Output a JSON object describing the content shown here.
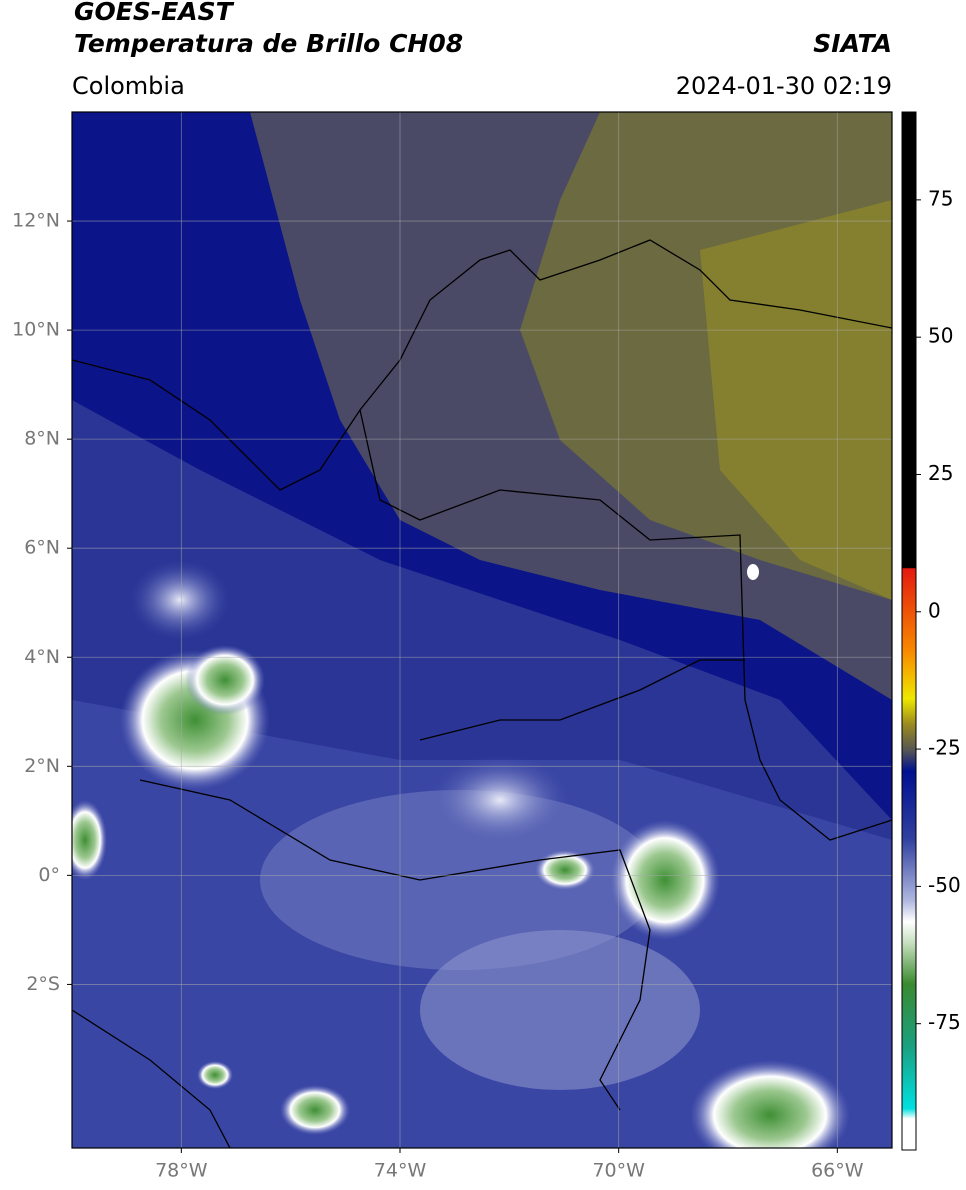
{
  "header": {
    "title": "GOES-EAST",
    "subtitle": "Temperatura de Brillo CH08",
    "source": "SIATA",
    "region": "Colombia",
    "timestamp": "2024-01-30 02:19"
  },
  "map": {
    "xlim": [
      -80,
      -65
    ],
    "ylim": [
      -5,
      14
    ],
    "xticks": [
      {
        "value": -78,
        "label": "78°W"
      },
      {
        "value": -74,
        "label": "74°W"
      },
      {
        "value": -70,
        "label": "70°W"
      },
      {
        "value": -66,
        "label": "66°W"
      }
    ],
    "yticks": [
      {
        "value": 12,
        "label": "12°N"
      },
      {
        "value": 10,
        "label": "10°N"
      },
      {
        "value": 8,
        "label": "8°N"
      },
      {
        "value": 6,
        "label": "6°N"
      },
      {
        "value": 4,
        "label": "4°N"
      },
      {
        "value": 2,
        "label": "2°N"
      },
      {
        "value": 0,
        "label": "0°"
      },
      {
        "value": -2,
        "label": "2°S"
      }
    ],
    "grid": true
  },
  "colorbar": {
    "clim": [
      -98,
      91
    ],
    "ticks": [
      75,
      50,
      25,
      0,
      -25,
      -50,
      -75
    ]
  }
}
